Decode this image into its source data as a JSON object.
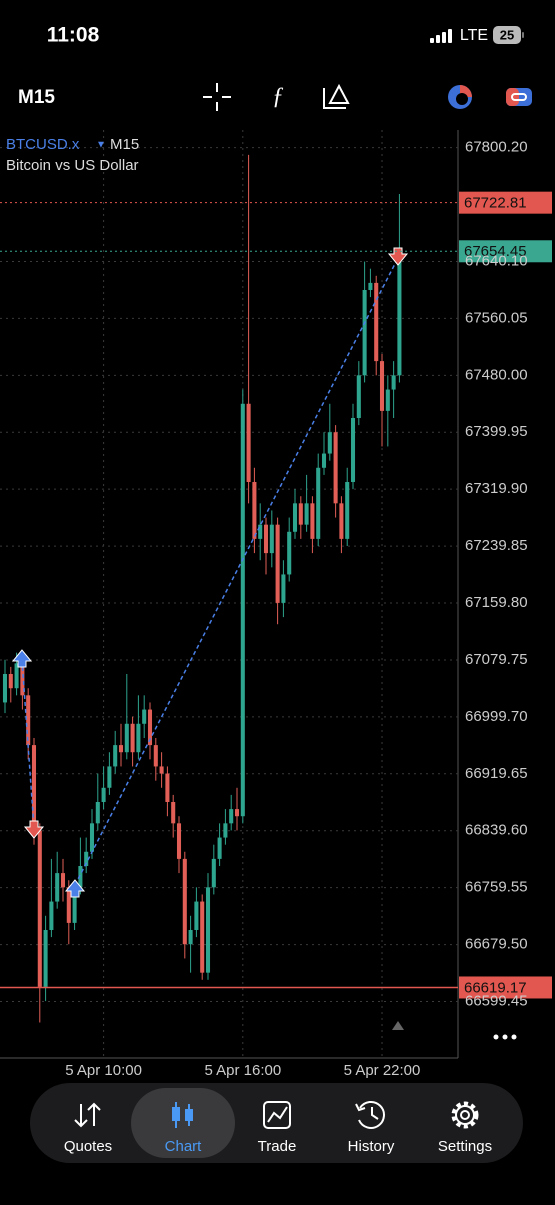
{
  "status_bar": {
    "time": "11:08",
    "network": "LTE",
    "battery": "25"
  },
  "toolbar": {
    "timeframe": "M15"
  },
  "chart_data": {
    "type": "candlestick",
    "symbol": "BTCUSD.x",
    "timeframe": "M15",
    "subtitle": "Bitcoin vs US Dollar",
    "open": [
      67020,
      67060,
      67040,
      67075,
      67030,
      66960,
      66840,
      66620,
      66700,
      66740,
      66780,
      66760,
      66710,
      66760,
      66790,
      66810,
      66850,
      66880,
      66900,
      66930,
      66960,
      66950,
      66990,
      66950,
      66990,
      67010,
      66960,
      66930,
      66920,
      66880,
      66850,
      66800,
      66680,
      66700,
      66740,
      66640,
      66760,
      66800,
      66830,
      66850,
      66870,
      66860,
      67440,
      67330,
      67250,
      67270,
      67230,
      67270,
      67160,
      67200,
      67260,
      67300,
      67270,
      67300,
      67250,
      67350,
      67370,
      67400,
      67300,
      67250,
      67330,
      67420,
      67480,
      67600,
      67610,
      67500,
      67430,
      67460,
      67480
    ],
    "high": [
      67080,
      67070,
      67090,
      67085,
      67040,
      66970,
      66850,
      66720,
      66800,
      66810,
      66800,
      66770,
      66770,
      66830,
      66830,
      66870,
      66920,
      66930,
      66950,
      66980,
      66990,
      67060,
      67000,
      67030,
      67030,
      67020,
      66970,
      66950,
      66930,
      66890,
      66860,
      66810,
      66720,
      66760,
      66750,
      66780,
      66820,
      66850,
      66870,
      66890,
      66900,
      67460,
      67790,
      67350,
      67300,
      67280,
      67290,
      67280,
      67220,
      67280,
      67320,
      67310,
      67340,
      67310,
      67370,
      67400,
      67440,
      67410,
      67310,
      67350,
      67440,
      67500,
      67640,
      67630,
      67620,
      67510,
      67480,
      67500,
      67735
    ],
    "low": [
      67005,
      67020,
      67030,
      67010,
      66940,
      66820,
      66570,
      66600,
      66690,
      66730,
      66740,
      66680,
      66700,
      66750,
      66780,
      66800,
      66840,
      66870,
      66890,
      66920,
      66930,
      66940,
      66930,
      66940,
      66970,
      66940,
      66910,
      66900,
      66860,
      66830,
      66780,
      66660,
      66640,
      66690,
      66630,
      66630,
      66750,
      66790,
      66820,
      66840,
      66840,
      66850,
      67300,
      67230,
      67220,
      67200,
      67210,
      67130,
      67140,
      67190,
      67250,
      67250,
      67260,
      67230,
      67240,
      67340,
      67360,
      67280,
      67230,
      67240,
      67320,
      67410,
      67470,
      67590,
      67480,
      67380,
      67380,
      67420,
      67470
    ],
    "close": [
      67060,
      67040,
      67075,
      67030,
      66960,
      66840,
      66620,
      66700,
      66740,
      66780,
      66760,
      66710,
      66760,
      66790,
      66810,
      66850,
      66880,
      66900,
      66930,
      66960,
      66950,
      66990,
      66950,
      66990,
      67010,
      66960,
      66930,
      66920,
      66880,
      66850,
      66800,
      66680,
      66700,
      66740,
      66640,
      66760,
      66800,
      66830,
      66850,
      66870,
      66860,
      67440,
      67330,
      67250,
      67270,
      67230,
      67270,
      67160,
      67200,
      67260,
      67300,
      67270,
      67300,
      67250,
      67350,
      67370,
      67400,
      67300,
      67250,
      67330,
      67420,
      67480,
      67600,
      67610,
      67500,
      67430,
      67460,
      67480,
      67654.45
    ],
    "colors": {
      "up": "#2ea58e",
      "down": "#e25f57"
    },
    "ylim": [
      66520,
      67825
    ],
    "yticks": [
      {
        "value": 67800.2,
        "label": "67800.20"
      },
      {
        "value": 67640.1,
        "label": "67640.10"
      },
      {
        "value": 67560.05,
        "label": "67560.05"
      },
      {
        "value": 67480,
        "label": "67480.00"
      },
      {
        "value": 67399.95,
        "label": "67399.95"
      },
      {
        "value": 67319.9,
        "label": "67319.90"
      },
      {
        "value": 67239.85,
        "label": "67239.85"
      },
      {
        "value": 67159.8,
        "label": "67159.80"
      },
      {
        "value": 67079.75,
        "label": "67079.75"
      },
      {
        "value": 66999.7,
        "label": "66999.70"
      },
      {
        "value": 66919.65,
        "label": "66919.65"
      },
      {
        "value": 66839.6,
        "label": "66839.60"
      },
      {
        "value": 66759.55,
        "label": "66759.55"
      },
      {
        "value": 66679.5,
        "label": "66679.50"
      },
      {
        "value": 66599.45,
        "label": "66599.45"
      }
    ],
    "xlim": [
      -0.86,
      78.1
    ],
    "xticks": [
      {
        "value": 17,
        "label": "5 Apr 10:00"
      },
      {
        "value": 41,
        "label": "5 Apr 16:00"
      },
      {
        "value": 65,
        "label": "5 Apr 22:00"
      }
    ],
    "levels": [
      {
        "value": 67722.81,
        "color": "#e2574f",
        "style": "dotted"
      },
      {
        "value": 67654.45,
        "color": "#3aa890",
        "style": "dotted"
      },
      {
        "value": 66619.17,
        "color": "#e2574f",
        "style": "solid"
      }
    ],
    "grid": true
  },
  "tabs": [
    {
      "label": "Quotes"
    },
    {
      "label": "Chart"
    },
    {
      "label": "Trade"
    },
    {
      "label": "History"
    },
    {
      "label": "Settings"
    }
  ]
}
